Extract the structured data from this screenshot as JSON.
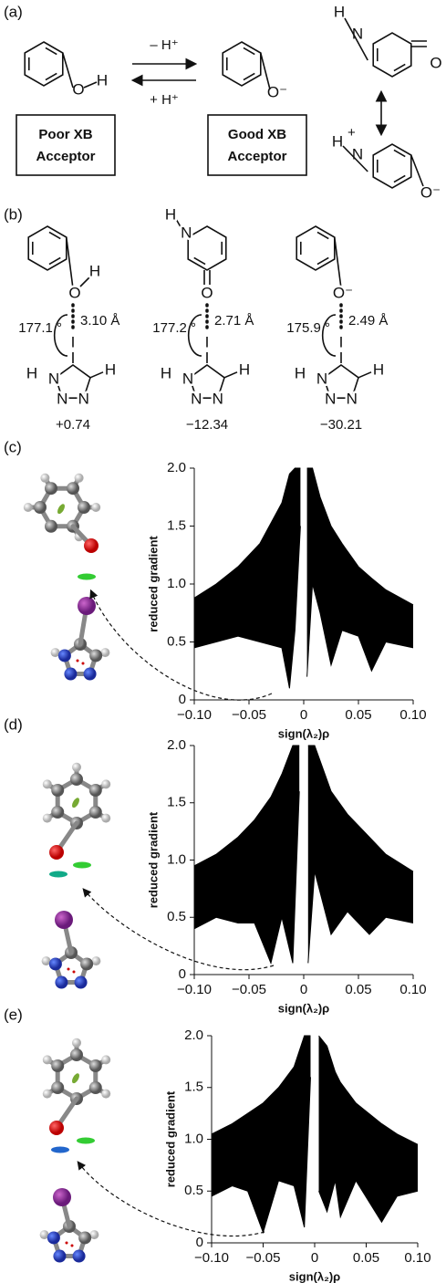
{
  "panel_a": {
    "label": "(a)",
    "phenol": [
      "O",
      "H"
    ],
    "forward": "– H⁺",
    "backward": "+ H⁺",
    "phenolate": [
      "O⁻"
    ],
    "pyridone": [
      "H",
      "N",
      "O"
    ],
    "pyridinium": [
      "H",
      "+",
      "N",
      "O⁻"
    ],
    "box_left": [
      "Poor XB",
      "Acceptor"
    ],
    "box_right": [
      "Good XB",
      "Acceptor"
    ]
  },
  "panel_b": {
    "label": "(b)",
    "complexes": [
      {
        "donor_atoms": [
          "O",
          "H"
        ],
        "iodine": "I",
        "angle": "177.1 °",
        "distance": "3.10 Å",
        "triazole_atoms": [
          "H",
          "N",
          "N",
          "N",
          "H"
        ],
        "energy": "+0.74"
      },
      {
        "donor_atoms": [
          "H",
          "N",
          "O"
        ],
        "iodine": "I",
        "angle": "177.2 °",
        "distance": "2.71 Å",
        "triazole_atoms": [
          "H",
          "N",
          "N",
          "N",
          "H"
        ],
        "energy": "−12.34"
      },
      {
        "donor_atoms": [
          "O⁻"
        ],
        "iodine": "I",
        "angle": "175.9 °",
        "distance": "2.49 Å",
        "triazole_atoms": [
          "H",
          "N",
          "N",
          "N",
          "H"
        ],
        "energy": "−30.21"
      }
    ]
  },
  "chart_data": [
    {
      "type": "line",
      "panel_label": "(c)",
      "fill_between": true,
      "xlabel": "sign(λ₂)ρ",
      "ylabel": "reduced gradient",
      "x": [
        -0.1,
        -0.08,
        -0.06,
        -0.04,
        -0.02,
        -0.013,
        -0.008,
        -0.003,
        0,
        0.003,
        0.008,
        0.015,
        0.025,
        0.035,
        0.05,
        0.062,
        0.075,
        0.1
      ],
      "series": [
        {
          "color": "#000000",
          "values": [
            0.88,
            1.0,
            1.15,
            1.35,
            1.7,
            1.95,
            2.0,
            2.0,
            null,
            2.0,
            2.0,
            1.75,
            1.5,
            1.35,
            1.15,
            1.05,
            0.95,
            0.82
          ]
        },
        {
          "color": "#000000",
          "values": [
            0.45,
            0.5,
            0.55,
            0.5,
            0.45,
            0.1,
            0.6,
            1.5,
            null,
            0.2,
            1.0,
            0.75,
            0.3,
            0.6,
            0.55,
            0.25,
            0.5,
            0.45
          ]
        }
      ],
      "xlim": [
        -0.1,
        0.1
      ],
      "ylim": [
        0,
        2
      ],
      "xticks": [
        {
          "value": -0.1,
          "label": "−0.10"
        },
        {
          "value": -0.05,
          "label": "−0.05"
        },
        0,
        0.05,
        {
          "value": 0.1,
          "label": "0.10"
        }
      ],
      "yticks": [
        0,
        0.5,
        {
          "value": 1,
          "label": "1.0"
        },
        1.5,
        {
          "value": 2,
          "label": "2.0"
        }
      ]
    },
    {
      "type": "line",
      "panel_label": "(d)",
      "fill_between": true,
      "xlabel": "sign(λ₂)ρ",
      "ylabel": "reduced gradient",
      "x": [
        -0.1,
        -0.08,
        -0.06,
        -0.045,
        -0.03,
        -0.02,
        -0.01,
        -0.004,
        0,
        0.004,
        0.01,
        0.025,
        0.04,
        0.06,
        0.075,
        0.1
      ],
      "series": [
        {
          "color": "#000000",
          "values": [
            0.95,
            1.05,
            1.2,
            1.35,
            1.55,
            1.75,
            2.0,
            2.0,
            null,
            2.0,
            2.0,
            1.6,
            1.4,
            1.2,
            1.05,
            0.9
          ]
        },
        {
          "color": "#000000",
          "values": [
            0.4,
            0.5,
            0.45,
            0.45,
            0.1,
            0.5,
            0.1,
            1.6,
            null,
            0.1,
            0.9,
            0.35,
            0.55,
            0.35,
            0.5,
            0.45
          ]
        }
      ],
      "xlim": [
        -0.1,
        0.1
      ],
      "ylim": [
        0,
        2
      ],
      "xticks": [
        {
          "value": -0.1,
          "label": "−0.10"
        },
        {
          "value": -0.05,
          "label": "−0.05"
        },
        0,
        0.05,
        {
          "value": 0.1,
          "label": "0.10"
        }
      ],
      "yticks": [
        0,
        0.5,
        {
          "value": 1,
          "label": "1.0"
        },
        1.5,
        {
          "value": 2,
          "label": "2.0"
        }
      ]
    },
    {
      "type": "line",
      "panel_label": "(e)",
      "fill_between": true,
      "xlabel": "sign(λ₂)ρ",
      "ylabel": "reduced gradient",
      "x": [
        -0.1,
        -0.08,
        -0.065,
        -0.05,
        -0.035,
        -0.02,
        -0.01,
        -0.004,
        0,
        0.004,
        0.012,
        0.02,
        0.025,
        0.04,
        0.065,
        0.08,
        0.1
      ],
      "series": [
        {
          "color": "#000000",
          "values": [
            1.05,
            1.15,
            1.25,
            1.35,
            1.5,
            1.7,
            2.0,
            2.0,
            null,
            2.0,
            1.9,
            1.65,
            1.55,
            1.35,
            1.15,
            1.05,
            0.95
          ]
        },
        {
          "color": "#000000",
          "values": [
            0.45,
            0.55,
            0.5,
            0.1,
            0.6,
            0.55,
            0.15,
            1.6,
            null,
            0.5,
            0.3,
            0.6,
            0.25,
            0.6,
            0.2,
            0.45,
            0.5
          ]
        }
      ],
      "xlim": [
        -0.1,
        0.1
      ],
      "ylim": [
        0,
        2
      ],
      "xticks": [
        {
          "value": -0.1,
          "label": "−0.10"
        },
        {
          "value": -0.05,
          "label": "−0.05"
        },
        0,
        0.05,
        {
          "value": 0.1,
          "label": "0.10"
        }
      ],
      "yticks": [
        0,
        0.5,
        {
          "value": 1,
          "label": "1.0"
        },
        1.5,
        {
          "value": 2,
          "label": "2.0"
        }
      ]
    }
  ]
}
